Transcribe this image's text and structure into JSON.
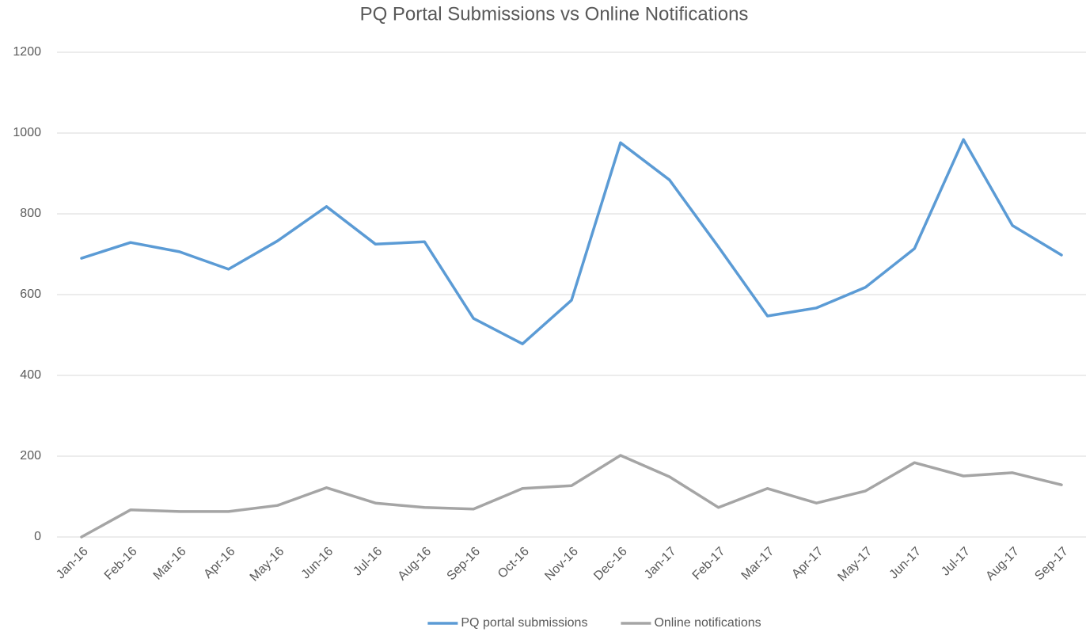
{
  "chart_data": {
    "type": "line",
    "title": "PQ Portal Submissions vs Online Notifications",
    "categories": [
      "Jan-16",
      "Feb-16",
      "Mar-16",
      "Apr-16",
      "May-16",
      "Jun-16",
      "Jul-16",
      "Aug-16",
      "Sep-16",
      "Oct-16",
      "Nov-16",
      "Dec-16",
      "Jan-17",
      "Feb-17",
      "Mar-17",
      "Apr-17",
      "May-17",
      "Jun-17",
      "Jul-17",
      "Aug-17",
      "Sep-17"
    ],
    "series": [
      {
        "name": "PQ portal submissions",
        "color": "#5b9bd5",
        "values": [
          690,
          729,
          706,
          663,
          733,
          818,
          725,
          731,
          541,
          478,
          586,
          976,
          884,
          718,
          547,
          567,
          618,
          714,
          984,
          771,
          698
        ]
      },
      {
        "name": "Online notifications",
        "color": "#a5a5a5",
        "values": [
          0,
          67,
          63,
          63,
          78,
          122,
          84,
          73,
          69,
          120,
          127,
          202,
          149,
          73,
          120,
          84,
          114,
          184,
          151,
          159,
          129
        ]
      }
    ],
    "ylim": [
      0,
      1200
    ],
    "yticks": [
      0,
      200,
      400,
      600,
      800,
      1000,
      1200
    ],
    "grid": true,
    "legend": "bottom"
  }
}
